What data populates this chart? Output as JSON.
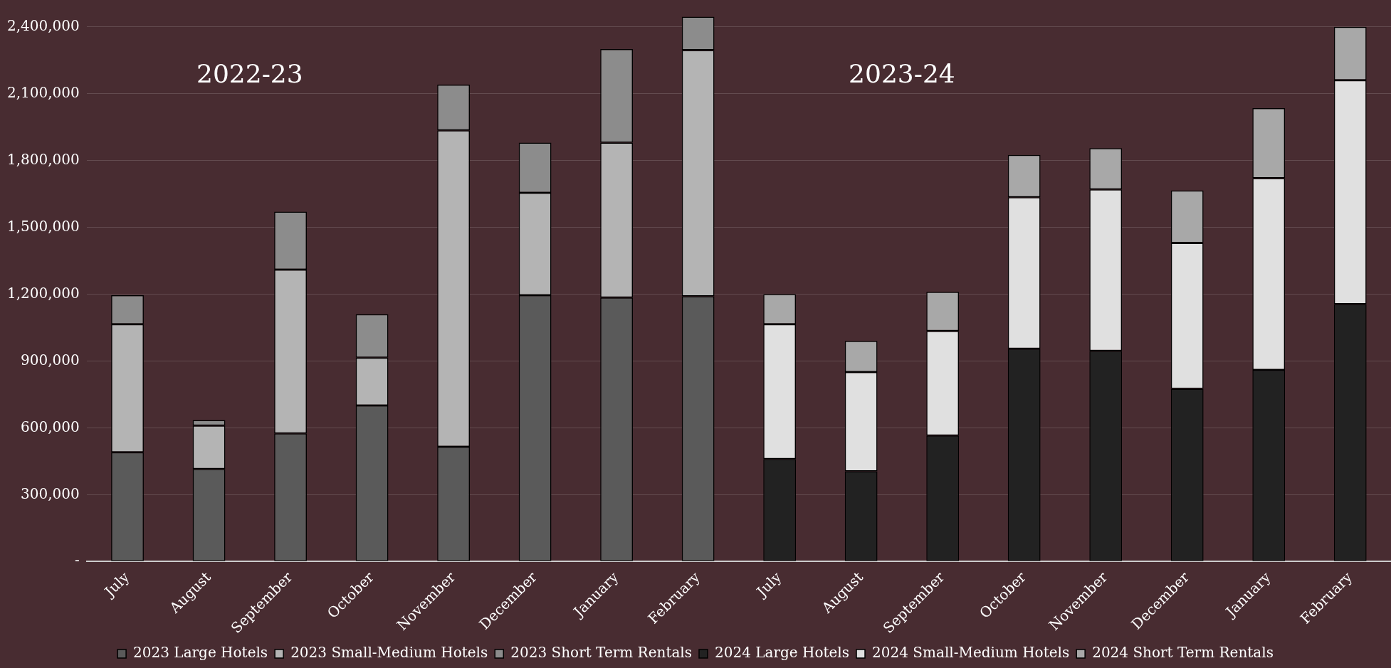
{
  "chart_data": {
    "type": "bar",
    "stacked": true,
    "categories": [
      "July",
      "August",
      "September",
      "October",
      "November",
      "December",
      "January",
      "February",
      "July",
      "August",
      "September",
      "October",
      "November",
      "December",
      "January",
      "February"
    ],
    "series": [
      {
        "name": "2023 Large Hotels",
        "color": "#5a5a5a",
        "values": [
          490000,
          415000,
          575000,
          700000,
          515000,
          1195000,
          1185000,
          1190000,
          null,
          null,
          null,
          null,
          null,
          null,
          null,
          null
        ]
      },
      {
        "name": "2023 Small-Medium Hotels",
        "color": "#b4b4b4",
        "values": [
          575000,
          195000,
          735000,
          215000,
          1420000,
          460000,
          695000,
          1105000,
          null,
          null,
          null,
          null,
          null,
          null,
          null,
          null
        ]
      },
      {
        "name": "2023 Short Term Rentals",
        "color": "#8c8c8c",
        "values": [
          130000,
          25000,
          260000,
          195000,
          205000,
          225000,
          420000,
          150000,
          null,
          null,
          null,
          null,
          null,
          null,
          null,
          null
        ]
      },
      {
        "name": "2024 Large Hotels",
        "color": "#222222",
        "values": [
          null,
          null,
          null,
          null,
          null,
          null,
          null,
          null,
          460000,
          405000,
          565000,
          955000,
          945000,
          775000,
          860000,
          1155000
        ]
      },
      {
        "name": "2024 Small-Medium Hotels",
        "color": "#e0e0e0",
        "values": [
          null,
          null,
          null,
          null,
          null,
          null,
          null,
          null,
          605000,
          445000,
          470000,
          680000,
          725000,
          655000,
          860000,
          1005000
        ]
      },
      {
        "name": "2024 Short Term Rentals",
        "color": "#a8a8a8",
        "values": [
          null,
          null,
          null,
          null,
          null,
          null,
          null,
          null,
          135000,
          140000,
          175000,
          190000,
          185000,
          235000,
          315000,
          240000
        ]
      }
    ],
    "ylim": [
      0,
      2450000
    ],
    "yticks": [
      {
        "value": 0,
        "label": "-"
      },
      {
        "value": 300000,
        "label": "300,000"
      },
      {
        "value": 600000,
        "label": "600,000"
      },
      {
        "value": 900000,
        "label": "900,000"
      },
      {
        "value": 1200000,
        "label": "1,200,000"
      },
      {
        "value": 1500000,
        "label": "1,500,000"
      },
      {
        "value": 1800000,
        "label": "1,800,000"
      },
      {
        "value": 2100000,
        "label": "2,100,000"
      },
      {
        "value": 2400000,
        "label": "2,400,000"
      }
    ],
    "grid": "y",
    "legend": "bottom",
    "annotations": [
      "2022-23",
      "2023-24"
    ]
  }
}
